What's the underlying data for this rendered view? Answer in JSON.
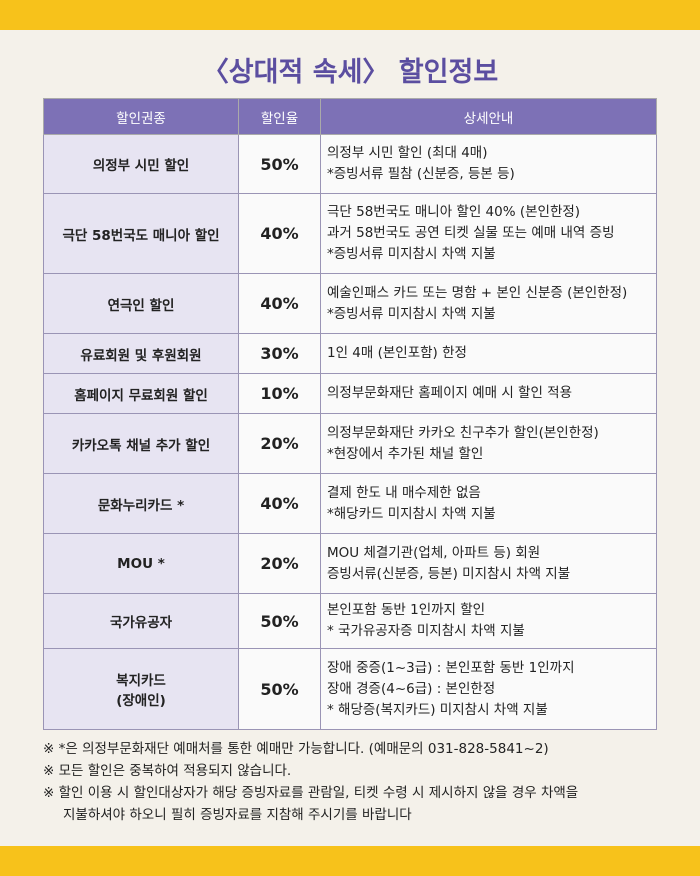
{
  "header": {
    "title": "〈상대적 속세〉 할인정보"
  },
  "table": {
    "columns": [
      "할인권종",
      "할인율",
      "상세안내"
    ],
    "rows": [
      {
        "type": [
          "의정부 시민 할인"
        ],
        "rate": "50%",
        "details": [
          "의정부 시민 할인 (최대 4매)",
          "*증빙서류 필참 (신분증, 등본 등)"
        ]
      },
      {
        "type": [
          "극단 58번국도 매니아 할인"
        ],
        "rate": "40%",
        "details": [
          "극단 58번국도 매니아 할인 40% (본인한정)",
          "과거 58번국도 공연 티켓 실물 또는 예매 내역 증빙",
          "*증빙서류 미지참시 차액 지불"
        ]
      },
      {
        "type": [
          "연극인 할인"
        ],
        "rate": "40%",
        "details": [
          "예술인패스 카드 또는 명함 + 본인 신분증 (본인한정)",
          "*증빙서류 미지참시 차액 지불"
        ]
      },
      {
        "type": [
          "유료회원 및 후원회원"
        ],
        "rate": "30%",
        "details": [
          "1인 4매 (본인포함) 한정"
        ]
      },
      {
        "type": [
          "홈페이지 무료회원 할인"
        ],
        "rate": "10%",
        "details": [
          "의정부문화재단 홈페이지 예매 시 할인 적용"
        ]
      },
      {
        "type": [
          "카카오톡 채널 추가 할인"
        ],
        "rate": "20%",
        "details": [
          "의정부문화재단 카카오 친구추가 할인(본인한정)",
          "*현장에서 추가된 채널 할인"
        ]
      },
      {
        "type": [
          "문화누리카드 *"
        ],
        "rate": "40%",
        "details": [
          "결제 한도 내 매수제한 없음",
          "*해당카드 미지참시 차액 지불"
        ]
      },
      {
        "type": [
          "MOU *"
        ],
        "rate": "20%",
        "details": [
          "MOU 체결기관(업체, 아파트 등) 회원",
          "증빙서류(신분증, 등본) 미지참시 차액 지불"
        ]
      },
      {
        "type": [
          "국가유공자"
        ],
        "rate": "50%",
        "details": [
          "본인포함 동반 1인까지 할인",
          "* 국가유공자증 미지참시 차액 지불"
        ]
      },
      {
        "type": [
          "복지카드",
          "(장애인)"
        ],
        "rate": "50%",
        "details": [
          "장애 중증(1~3급) : 본인포함 동반 1인까지",
          "장애 경증(4~6급) : 본인한정",
          "* 해당증(복지카드) 미지참시 차액 지불"
        ]
      }
    ]
  },
  "notes": [
    [
      "※ *은 의정부문화재단 예매처를 통한 예매만 가능합니다. (예매문의 031-828-5841~2)"
    ],
    [
      "※ 모든 할인은 중복하여 적용되지 않습니다."
    ],
    [
      "※ 할인 이용 시 할인대상자가 해당 증빙자료를 관람일, 티켓 수령 시 제시하지 않을 경우 차액을",
      "지불하셔야 하오니 필히 증빙자료를 지참해 주시기를 바랍니다"
    ]
  ]
}
